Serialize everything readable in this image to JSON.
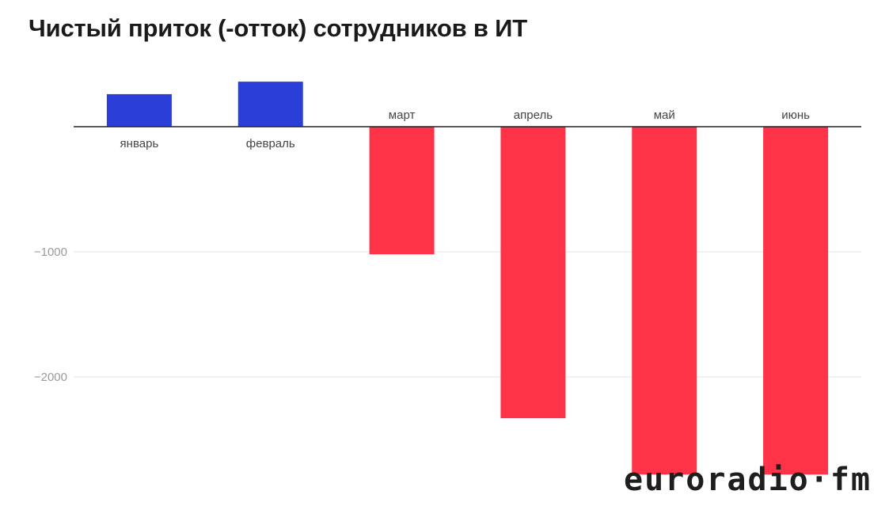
{
  "chart_data": {
    "type": "bar",
    "title": "Чистый приток (-отток) сотрудников в ИТ",
    "categories": [
      "январь",
      "февраль",
      "март",
      "апрель",
      "май",
      "июнь"
    ],
    "values": [
      260,
      360,
      -1020,
      -2330,
      -2780,
      -2780
    ],
    "ylim": [
      -2780,
      360
    ],
    "yticks": [
      -1000,
      -2000
    ],
    "ytick_labels": [
      "−1000",
      "−2000"
    ],
    "grid": true,
    "legend": "none",
    "colors": {
      "positive": "#2a3ed8",
      "negative": "#ff3347"
    }
  },
  "logo": {
    "text": "euroradio·fm"
  }
}
